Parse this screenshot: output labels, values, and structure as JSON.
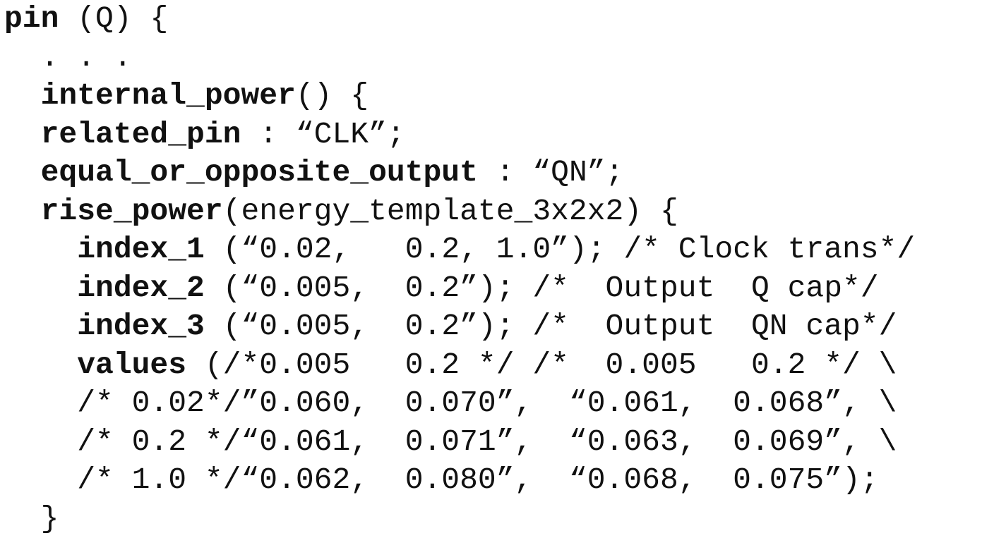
{
  "lines": [
    {
      "indent": "",
      "kw": "pin",
      "rest": " (Q) {"
    },
    {
      "indent": "  ",
      "kw": "",
      "rest": ". . ."
    },
    {
      "indent": "  ",
      "kw": "internal_power",
      "rest": "() {"
    },
    {
      "indent": "  ",
      "kw": "related_pin",
      "rest": " : “CLK”;"
    },
    {
      "indent": "  ",
      "kw": "equal_or_opposite_output",
      "rest": " : “QN”;"
    },
    {
      "indent": "  ",
      "kw": "rise_power",
      "rest": "(energy_template_3x2x2) {"
    },
    {
      "indent": "    ",
      "kw": "index_1",
      "rest": " (“0.02,   0.2, 1.0”); /* Clock trans*/"
    },
    {
      "indent": "    ",
      "kw": "index_2",
      "rest": " (“0.005,  0.2”); /*  Output  Q cap*/"
    },
    {
      "indent": "    ",
      "kw": "index_3",
      "rest": " (“0.005,  0.2”); /*  Output  QN cap*/"
    },
    {
      "indent": "    ",
      "kw": "values",
      "rest": " (/*0.005   0.2 */ /*  0.005   0.2 */ \\"
    },
    {
      "indent": "    ",
      "kw": "",
      "rest": "/* 0.02*/”0.060,  0.070”,  “0.061,  0.068”, \\"
    },
    {
      "indent": "    ",
      "kw": "",
      "rest": "/* 0.2 */“0.061,  0.071”,  “0.063,  0.069”, \\"
    },
    {
      "indent": "    ",
      "kw": "",
      "rest": "/* 1.0 */“0.062,  0.080”,  “0.068,  0.075”);"
    },
    {
      "indent": "  ",
      "kw": "",
      "rest": "}"
    }
  ]
}
